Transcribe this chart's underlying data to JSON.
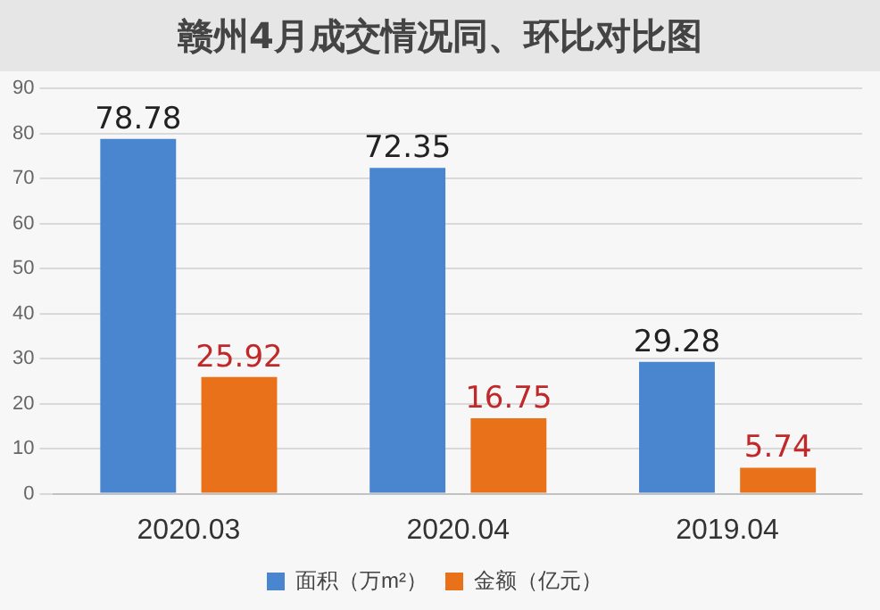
{
  "chart_data": {
    "type": "bar",
    "title": "赣州4月成交情况同、环比对比图",
    "categories": [
      "2020.03",
      "2020.04",
      "2019.04"
    ],
    "series": [
      {
        "name": "面积（万m²）",
        "color": "#4a86d0",
        "values": [
          78.78,
          72.35,
          29.28
        ]
      },
      {
        "name": "金额（亿元）",
        "color": "#e8711a",
        "values": [
          25.92,
          16.75,
          5.74
        ]
      }
    ],
    "ylim": [
      0,
      90
    ],
    "yticks": [
      0,
      10,
      20,
      30,
      40,
      50,
      60,
      70,
      80,
      90
    ],
    "grid": "y",
    "legend": "bottom",
    "data_labels": true
  }
}
